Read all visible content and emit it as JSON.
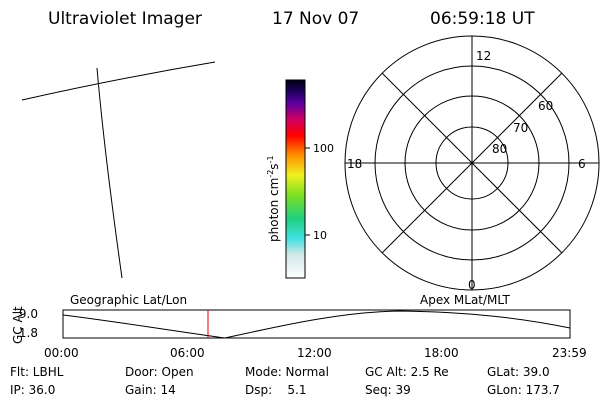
{
  "header": {
    "title": "Ultraviolet Imager",
    "date": "17 Nov 07",
    "time": "06:59:18 UT"
  },
  "colorbar": {
    "unit_base": "photon cm",
    "unit_exp1": "-2",
    "unit_mid": "s",
    "unit_exp2": "-1",
    "ticks": [
      "100",
      "10"
    ]
  },
  "polar": {
    "mlt_labels": [
      "12",
      "18",
      "6",
      "0"
    ],
    "lat_labels": [
      "60",
      "70",
      "80"
    ]
  },
  "altitude": {
    "y_label": "GC Alt",
    "left_title": "Geographic Lat/Lon",
    "right_title": "Apex MLat/MLT",
    "y_ticks": [
      "9.0",
      "1.8"
    ],
    "x_ticks": [
      "00:00",
      "06:00",
      "12:00",
      "18:00",
      "23:59"
    ]
  },
  "footer": {
    "rows": [
      [
        "Flt: LBHL",
        "Door: Open",
        "Mode: Normal",
        "GC Alt: 2.5 Re",
        "GLat: 39.0"
      ],
      [
        "IP: 36.0",
        "Gain: 14",
        "Dsp:    5.1",
        "Seq: 39",
        "GLon: 173.7"
      ]
    ]
  }
}
